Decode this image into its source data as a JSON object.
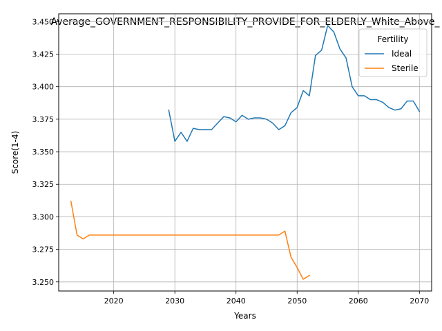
{
  "chart_data": {
    "type": "line",
    "title": "Average_GOVERNMENT_RESPONSIBILITY_PROVIDE_FOR_ELDERLY_White_Above_",
    "xlabel": "Years",
    "ylabel": "Score(1-4)",
    "xlim": [
      2011,
      2072
    ],
    "ylim": [
      3.243,
      3.456
    ],
    "x_ticks": [
      2020,
      2030,
      2040,
      2050,
      2060,
      2070
    ],
    "y_ticks": [
      3.25,
      3.275,
      3.3,
      3.325,
      3.35,
      3.375,
      3.4,
      3.425,
      3.45
    ],
    "grid": true,
    "legend": {
      "title": "Fertility",
      "position": "top-right"
    },
    "series": [
      {
        "name": "Ideal",
        "color": "#1f77b4",
        "x": [
          2029,
          2030,
          2031,
          2032,
          2033,
          2034,
          2035,
          2036,
          2037,
          2038,
          2039,
          2040,
          2041,
          2042,
          2043,
          2044,
          2045,
          2046,
          2047,
          2048,
          2049,
          2050,
          2051,
          2052,
          2053,
          2054,
          2055,
          2056,
          2057,
          2058,
          2059,
          2060,
          2061,
          2062,
          2063,
          2064,
          2065,
          2066,
          2067,
          2068,
          2069,
          2070
        ],
        "y": [
          3.382,
          3.358,
          3.365,
          3.358,
          3.368,
          3.367,
          3.367,
          3.367,
          3.372,
          3.377,
          3.376,
          3.373,
          3.378,
          3.375,
          3.376,
          3.376,
          3.375,
          3.372,
          3.367,
          3.37,
          3.38,
          3.384,
          3.397,
          3.393,
          3.424,
          3.428,
          3.447,
          3.442,
          3.429,
          3.422,
          3.4,
          3.393,
          3.393,
          3.39,
          3.39,
          3.388,
          3.384,
          3.382,
          3.383,
          3.389,
          3.389,
          3.381
        ]
      },
      {
        "name": "Sterile",
        "color": "#ff7f0e",
        "x": [
          2013,
          2014,
          2015,
          2016,
          2017,
          2018,
          2019,
          2020,
          2021,
          2022,
          2023,
          2024,
          2025,
          2026,
          2027,
          2028,
          2029,
          2030,
          2031,
          2032,
          2033,
          2034,
          2035,
          2036,
          2037,
          2038,
          2039,
          2040,
          2041,
          2042,
          2043,
          2044,
          2045,
          2046,
          2047,
          2048,
          2049,
          2050,
          2051,
          2052
        ],
        "y": [
          3.312,
          3.286,
          3.283,
          3.286,
          3.286,
          3.286,
          3.286,
          3.286,
          3.286,
          3.286,
          3.286,
          3.286,
          3.286,
          3.286,
          3.286,
          3.286,
          3.286,
          3.286,
          3.286,
          3.286,
          3.286,
          3.286,
          3.286,
          3.286,
          3.286,
          3.286,
          3.286,
          3.286,
          3.286,
          3.286,
          3.286,
          3.286,
          3.286,
          3.286,
          3.286,
          3.289,
          3.269,
          3.261,
          3.252,
          3.255
        ]
      }
    ]
  }
}
